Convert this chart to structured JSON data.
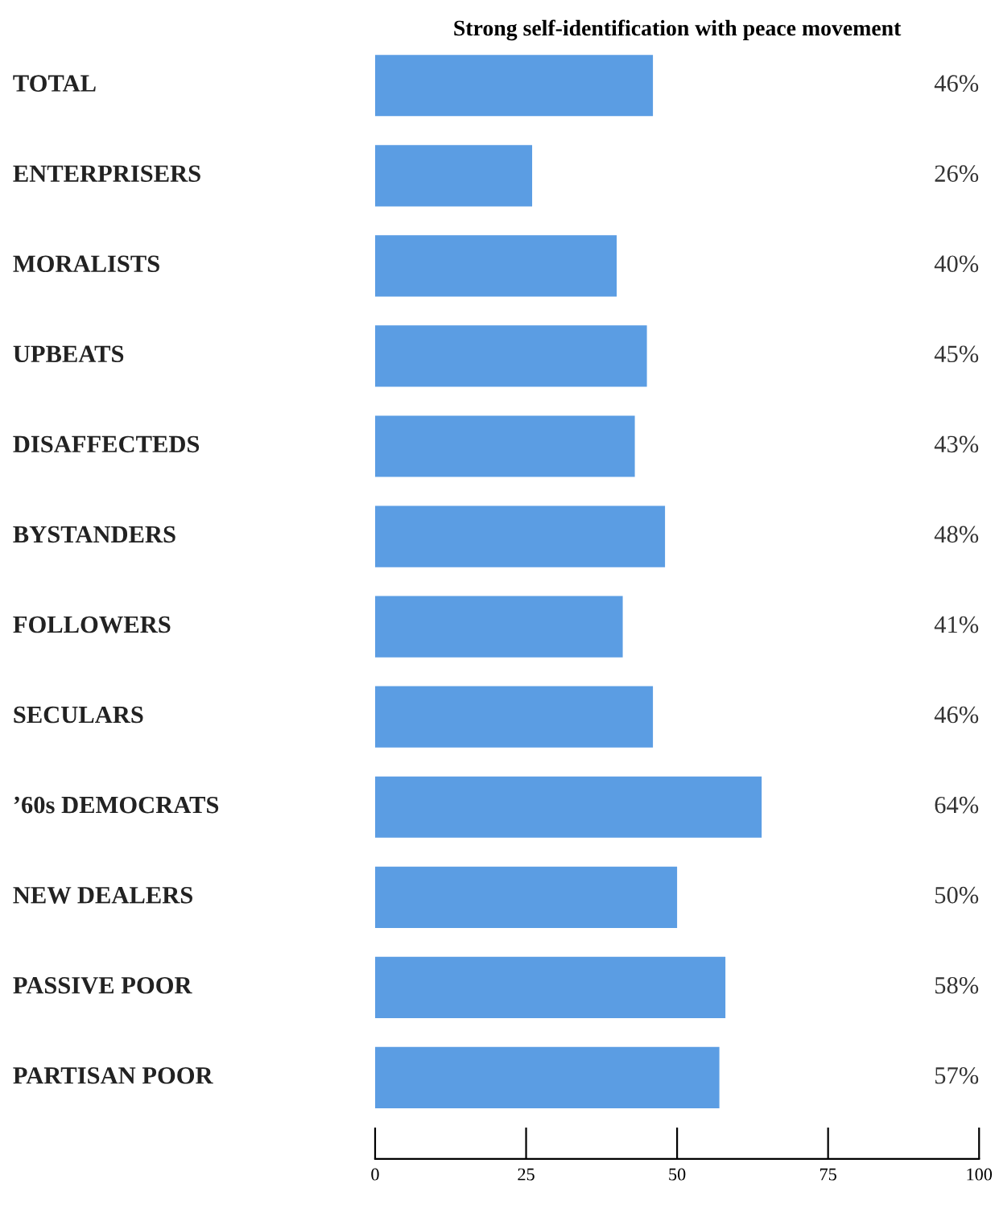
{
  "chart_data": {
    "type": "bar",
    "orientation": "horizontal",
    "title": "Strong self-identification with peace movement",
    "categories": [
      "TOTAL",
      "ENTERPRISERS",
      "MORALISTS",
      "UPBEATS",
      "DISAFFECTEDS",
      "BYSTANDERS",
      "FOLLOWERS",
      "SECULARS",
      "’60s DEMOCRATS",
      "NEW DEALERS",
      "PASSIVE POOR",
      "PARTISAN POOR"
    ],
    "values": [
      46,
      26,
      40,
      45,
      43,
      48,
      41,
      46,
      64,
      50,
      58,
      57
    ],
    "value_labels": [
      "46%",
      "26%",
      "40%",
      "45%",
      "43%",
      "48%",
      "41%",
      "46%",
      "64%",
      "50%",
      "58%",
      "57%"
    ],
    "color": "#5b9de3",
    "xlim": [
      0,
      100
    ],
    "xticks": [
      0,
      25,
      50,
      75,
      100
    ],
    "grid": false,
    "legend": false
  }
}
